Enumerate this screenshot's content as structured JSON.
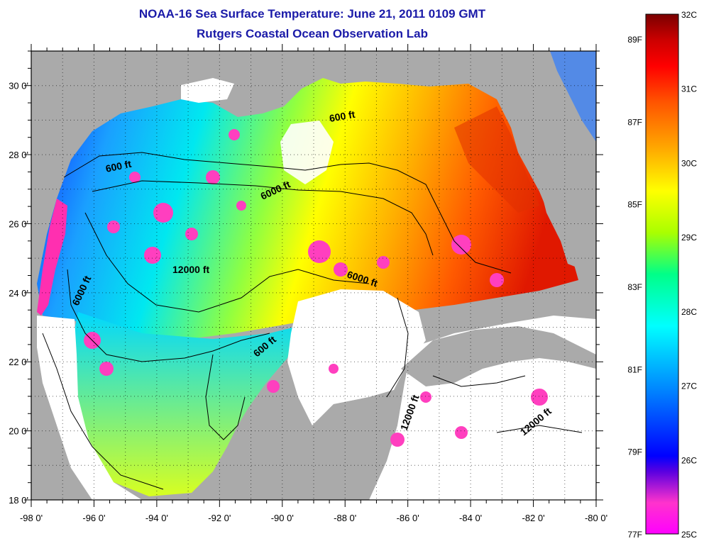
{
  "title": "NOAA-16 Sea Surface Temperature:  June 21, 2011 0109 GMT",
  "subtitle": "Rutgers Coastal Ocean Observation Lab",
  "map": {
    "lon_range": [
      -98,
      -80
    ],
    "lat_range": [
      18,
      31
    ],
    "lon_ticks": [
      "-98 0'",
      "-96 0'",
      "-94 0'",
      "-92 0'",
      "-90 0'",
      "-88 0'",
      "-86 0'",
      "-84 0'",
      "-82 0'",
      "-80 0'"
    ],
    "lat_ticks": [
      "18 0'",
      "20 0'",
      "22 0'",
      "24 0'",
      "26 0'",
      "28 0'",
      "30 0'"
    ],
    "contour_labels": [
      "600 ft",
      "600 ft",
      "6000 ft",
      "12000 ft",
      "6000 ft",
      "6000 ft",
      "600 ft",
      "12000 ft",
      "12000 ft"
    ],
    "colors": {
      "land": "#aaaaaa",
      "no_data": "#ffffff",
      "contour": "#000000"
    }
  },
  "colorbar": {
    "celsius": [
      "32C",
      "31C",
      "30C",
      "29C",
      "28C",
      "27C",
      "26C",
      "25C"
    ],
    "fahrenheit": [
      "89F",
      "87F",
      "85F",
      "83F",
      "81F",
      "79F",
      "77F"
    ],
    "colors": [
      "#ff00ff",
      "#ff33cc",
      "#5a00e0",
      "#0000ff",
      "#0088ff",
      "#00ffff",
      "#00ff88",
      "#aaff00",
      "#ffff00",
      "#ffaa00",
      "#ff5500",
      "#ff0000",
      "#cc0000",
      "#7a0000"
    ]
  }
}
